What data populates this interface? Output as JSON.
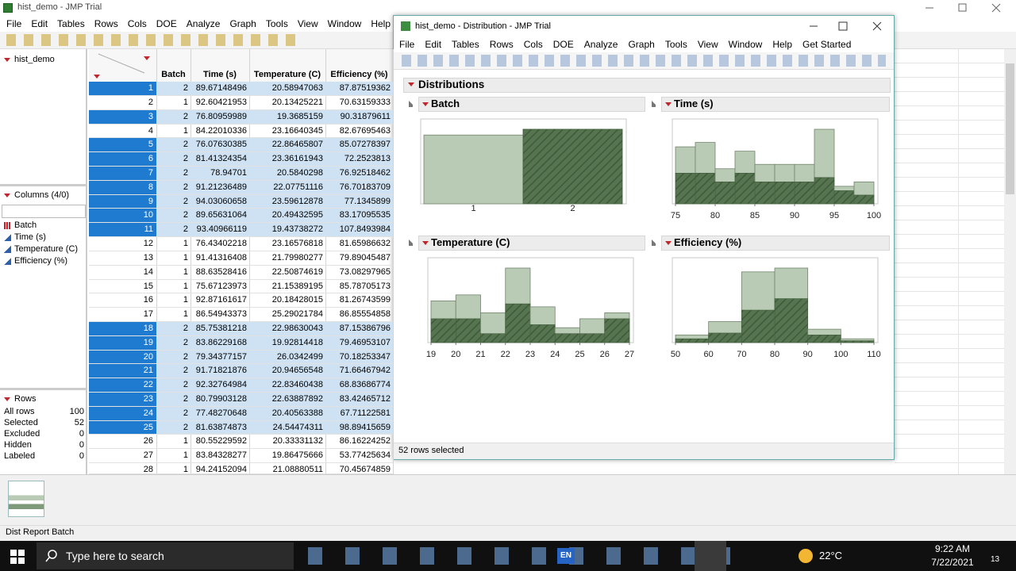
{
  "main_window": {
    "title": "hist_demo - JMP Trial",
    "menu": [
      "File",
      "Edit",
      "Tables",
      "Rows",
      "Cols",
      "DOE",
      "Analyze",
      "Graph",
      "Tools",
      "View",
      "Window",
      "Help",
      "Ge"
    ]
  },
  "table_panel": {
    "name": "hist_demo",
    "columns_header": "Columns (4/0)",
    "columns": [
      "Batch",
      "Time (s)",
      "Temperature (C)",
      "Efficiency (%)"
    ],
    "rows_header": "Rows",
    "row_stats": [
      {
        "label": "All rows",
        "value": 100
      },
      {
        "label": "Selected",
        "value": 52
      },
      {
        "label": "Excluded",
        "value": 0
      },
      {
        "label": "Hidden",
        "value": 0
      },
      {
        "label": "Labeled",
        "value": 0
      }
    ]
  },
  "table": {
    "headers": [
      "Batch",
      "Time (s)",
      "Temperature (C)",
      "Efficiency (%)"
    ],
    "rows": [
      {
        "number": 1,
        "cells": [
          2,
          89.67148496,
          20.58947063,
          87.87519362
        ],
        "selected": true
      },
      {
        "number": 2,
        "cells": [
          1,
          92.60421953,
          20.13425221,
          70.63159333
        ],
        "selected": false
      },
      {
        "number": 3,
        "cells": [
          2,
          76.80959989,
          19.3685159,
          90.31879611
        ],
        "selected": true
      },
      {
        "number": 4,
        "cells": [
          1,
          84.22010336,
          23.16640345,
          82.67695463
        ],
        "selected": false
      },
      {
        "number": 5,
        "cells": [
          2,
          76.07630385,
          22.86465807,
          85.07278397
        ],
        "selected": true
      },
      {
        "number": 6,
        "cells": [
          2,
          81.41324354,
          23.36161943,
          72.2523813
        ],
        "selected": true
      },
      {
        "number": 7,
        "cells": [
          2,
          78.94701,
          20.5840298,
          76.92518462
        ],
        "selected": true
      },
      {
        "number": 8,
        "cells": [
          2,
          91.21236489,
          22.07751116,
          76.70183709
        ],
        "selected": true
      },
      {
        "number": 9,
        "cells": [
          2,
          94.03060658,
          23.59612878,
          77.1345899
        ],
        "selected": true
      },
      {
        "number": 10,
        "cells": [
          2,
          89.65631064,
          20.49432595,
          83.17095535
        ],
        "selected": true
      },
      {
        "number": 11,
        "cells": [
          2,
          93.40966119,
          19.43738272,
          107.8493984
        ],
        "selected": true
      },
      {
        "number": 12,
        "cells": [
          1,
          76.43402218,
          23.16576818,
          81.65986632
        ],
        "selected": false
      },
      {
        "number": 13,
        "cells": [
          1,
          91.41316408,
          21.79980277,
          79.89045487
        ],
        "selected": false
      },
      {
        "number": 14,
        "cells": [
          1,
          88.63528416,
          22.50874619,
          73.08297965
        ],
        "selected": false
      },
      {
        "number": 15,
        "cells": [
          1,
          75.67123973,
          21.15389195,
          85.78705173
        ],
        "selected": false
      },
      {
        "number": 16,
        "cells": [
          1,
          92.87161617,
          20.18428015,
          81.26743599
        ],
        "selected": false
      },
      {
        "number": 17,
        "cells": [
          1,
          86.54943373,
          25.29021784,
          86.85554858
        ],
        "selected": false
      },
      {
        "number": 18,
        "cells": [
          2,
          85.75381218,
          22.98630043,
          87.15386796
        ],
        "selected": true
      },
      {
        "number": 19,
        "cells": [
          2,
          83.86229168,
          19.92814418,
          79.46953107
        ],
        "selected": true
      },
      {
        "number": 20,
        "cells": [
          2,
          79.34377157,
          26.0342499,
          70.18253347
        ],
        "selected": true
      },
      {
        "number": 21,
        "cells": [
          2,
          91.71821876,
          20.94656548,
          71.66467942
        ],
        "selected": true
      },
      {
        "number": 22,
        "cells": [
          2,
          92.32764984,
          22.83460438,
          68.83686774
        ],
        "selected": true
      },
      {
        "number": 23,
        "cells": [
          2,
          80.79903128,
          22.63887892,
          83.42465712
        ],
        "selected": true
      },
      {
        "number": 24,
        "cells": [
          2,
          77.48270648,
          20.40563388,
          67.71122581
        ],
        "selected": true
      },
      {
        "number": 25,
        "cells": [
          2,
          81.63874873,
          24.54474311,
          98.89415659
        ],
        "selected": true
      },
      {
        "number": 26,
        "cells": [
          1,
          80.55229592,
          20.33331132,
          86.16224252
        ],
        "selected": false
      },
      {
        "number": 27,
        "cells": [
          1,
          83.84328277,
          19.86475666,
          53.77425634
        ],
        "selected": false
      },
      {
        "number": 28,
        "cells": [
          1,
          94.24152094,
          21.08880511,
          70.45674859
        ],
        "selected": false
      }
    ]
  },
  "dist_window": {
    "title": "hist_demo - Distribution - JMP Trial",
    "menu": [
      "File",
      "Edit",
      "Tables",
      "Rows",
      "Cols",
      "DOE",
      "Analyze",
      "Graph",
      "Tools",
      "View",
      "Window",
      "Help",
      "Get Started"
    ],
    "report_title": "Distributions",
    "panels": [
      {
        "title": "Batch",
        "categories": [
          "1",
          "2"
        ],
        "counts": [
          48,
          52
        ],
        "selected_counts": [
          0,
          52
        ]
      },
      {
        "title": "Time (s)",
        "bins": [
          75,
          77.5,
          80,
          82.5,
          85,
          87.5,
          90,
          92.5,
          95,
          97.5,
          100
        ],
        "counts": [
          13,
          14,
          8,
          12,
          9,
          9,
          9,
          17,
          4,
          5
        ],
        "selected_counts": [
          7,
          7,
          5,
          7,
          5,
          5,
          5,
          6,
          3,
          2
        ],
        "xticks": [
          75,
          80,
          85,
          90,
          95,
          100
        ]
      },
      {
        "title": "Temperature (C)",
        "bins": [
          19,
          20,
          21,
          22,
          23,
          24,
          25,
          26,
          27
        ],
        "counts": [
          14,
          16,
          10,
          25,
          12,
          5,
          8,
          10
        ],
        "selected_counts": [
          8,
          8,
          3,
          13,
          6,
          3,
          3,
          8
        ],
        "xticks": [
          19,
          20,
          21,
          22,
          23,
          24,
          25,
          26,
          27
        ]
      },
      {
        "title": "Efficiency (%)",
        "bins": [
          50,
          60,
          70,
          80,
          90,
          100,
          110
        ],
        "counts": [
          4,
          11,
          37,
          39,
          7,
          2
        ],
        "selected_counts": [
          2,
          5,
          17,
          23,
          4,
          1
        ],
        "xticks": [
          50,
          60,
          70,
          80,
          90,
          100,
          110
        ]
      }
    ],
    "status": "52 rows selected"
  },
  "status_bar": "Dist Report Batch",
  "taskbar": {
    "search": "Type here to search",
    "language": "EN",
    "weather": "22°C",
    "time": "9:22 AM",
    "date": "7/22/2021",
    "notifications": 13
  }
}
